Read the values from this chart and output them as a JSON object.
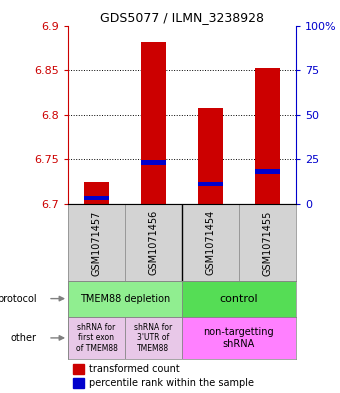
{
  "title": "GDS5077 / ILMN_3238928",
  "samples": [
    "GSM1071457",
    "GSM1071456",
    "GSM1071454",
    "GSM1071455"
  ],
  "red_values": [
    6.725,
    6.882,
    6.808,
    6.852
  ],
  "blue_pct": [
    2,
    22,
    10,
    17
  ],
  "ylim_left": [
    6.7,
    6.9
  ],
  "ylim_right": [
    0,
    100
  ],
  "yticks_left": [
    6.7,
    6.75,
    6.8,
    6.85,
    6.9
  ],
  "yticks_right": [
    0,
    25,
    50,
    75,
    100
  ],
  "ytick_labels_right": [
    "0",
    "25",
    "50",
    "75",
    "100%"
  ],
  "protocol_labels": [
    "TMEM88 depletion",
    "control"
  ],
  "other_labels": [
    "shRNA for\nfirst exon\nof TMEM88",
    "shRNA for\n3'UTR of\nTMEM88",
    "non-targetting\nshRNA"
  ],
  "protocol_colors": [
    "#90EE90",
    "#55DD55"
  ],
  "other_colors_left": "#E8C8E8",
  "other_color_right": "#FF80FF",
  "legend_red": "transformed count",
  "legend_blue": "percentile rank within the sample",
  "axis_color_left": "#CC0000",
  "axis_color_right": "#0000CC",
  "label_bg": "#D3D3D3"
}
